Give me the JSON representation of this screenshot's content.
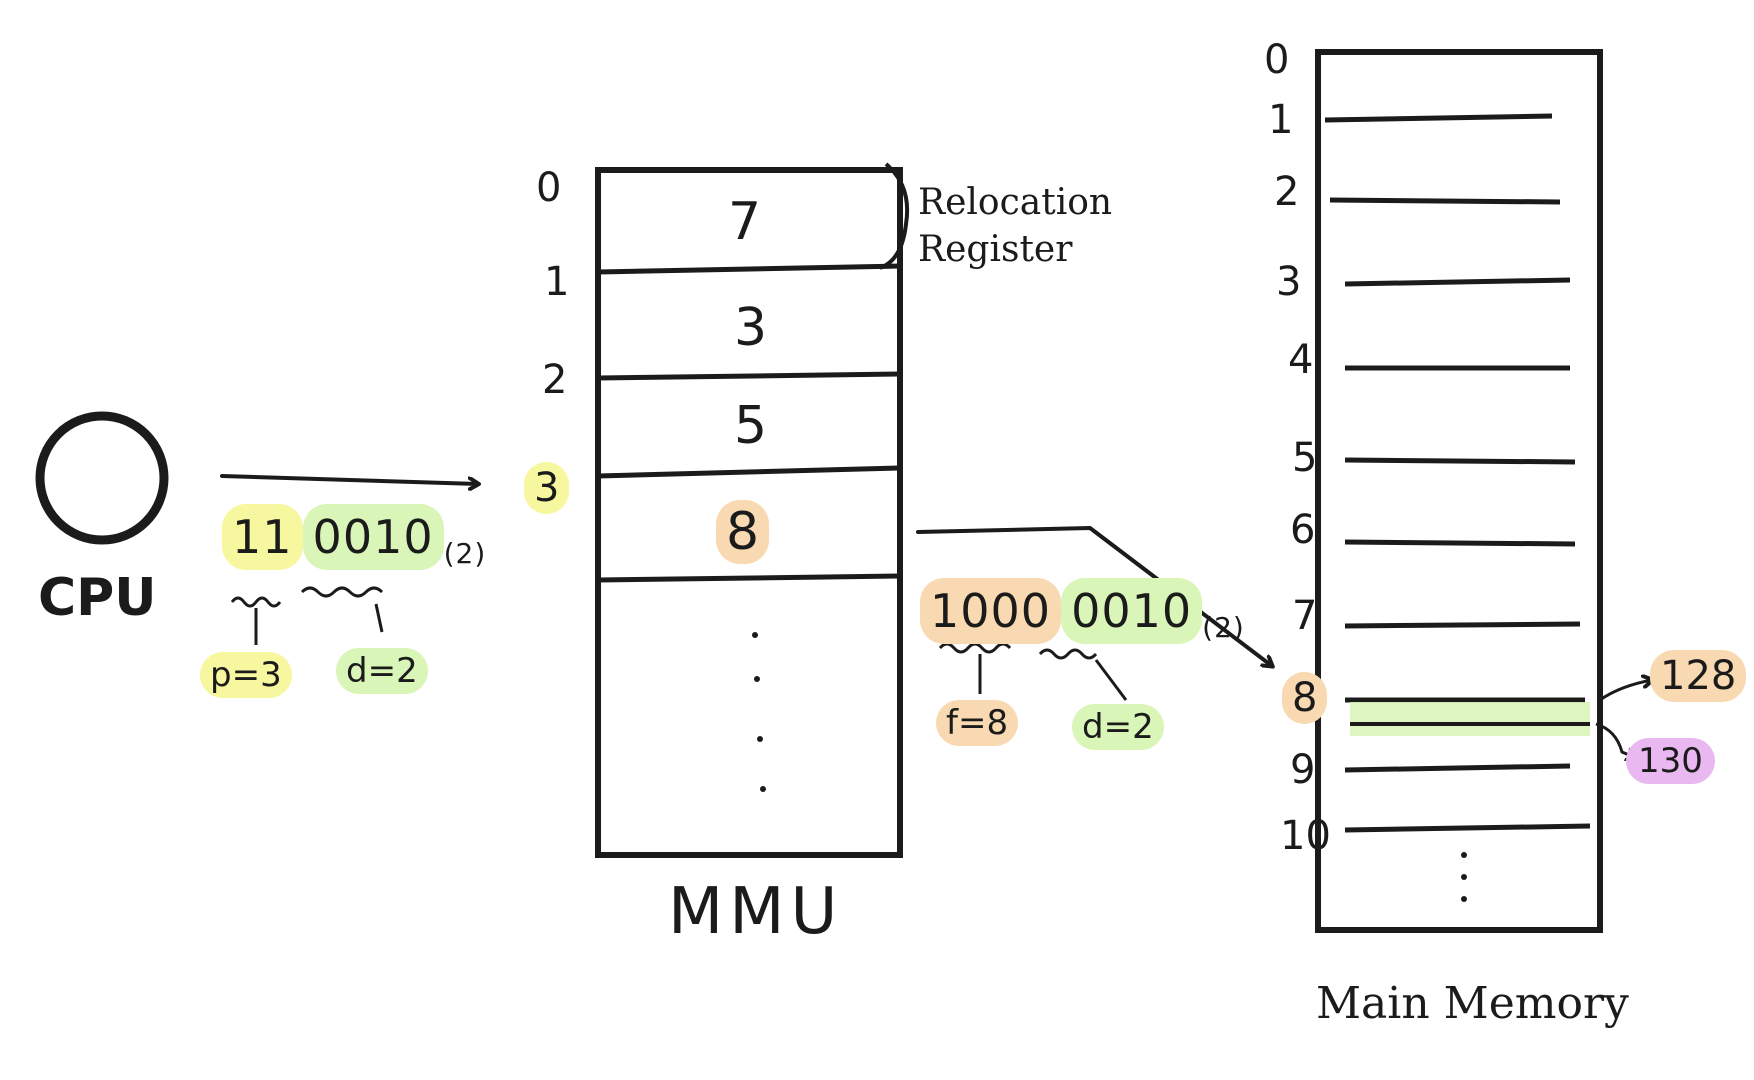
{
  "cpu": {
    "label": "CPU"
  },
  "logical_address": {
    "page_bits": "11",
    "offset_bits": "0010",
    "base": "(2)",
    "page_label": "p=3",
    "offset_label": "d=2"
  },
  "mmu": {
    "label": "MMU",
    "rows": [
      {
        "index": "0",
        "frame": "7"
      },
      {
        "index": "1",
        "frame": "3"
      },
      {
        "index": "2",
        "frame": "5"
      },
      {
        "index": "3",
        "frame": "8"
      }
    ],
    "relocation_label_line1": "Relocation",
    "relocation_label_line2": "Register"
  },
  "physical_address": {
    "frame_bits": "1000",
    "offset_bits": "0010",
    "base": "(2)",
    "frame_label": "f=8",
    "offset_label": "d=2"
  },
  "memory": {
    "label": "Main Memory",
    "indices": [
      "0",
      "1",
      "2",
      "3",
      "4",
      "5",
      "6",
      "7",
      "8",
      "9",
      "10"
    ],
    "frame_start_label": "128",
    "target_label": "130"
  },
  "colors": {
    "ink": "#1b1b1b",
    "highlight_yellow": "#f6f79f",
    "highlight_green": "#d9f5b8",
    "highlight_orange": "#f9d9b2",
    "highlight_pink": "#eab8f0"
  }
}
